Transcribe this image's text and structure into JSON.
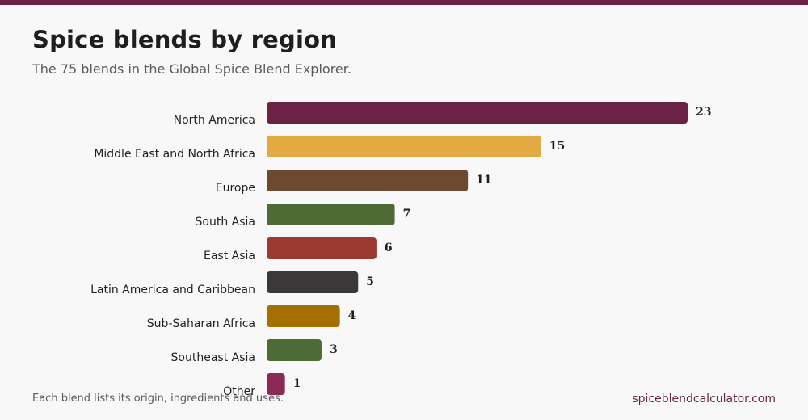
{
  "header": {
    "title": "Spice blends by region",
    "subtitle": "The 75 blends in the Global Spice Blend Explorer."
  },
  "footer": {
    "note": "Each blend lists its origin, ingredients and uses.",
    "site": "spiceblendcalculator.com"
  },
  "colors": {
    "accent": "#6a2343"
  },
  "chart_data": {
    "type": "bar",
    "orientation": "horizontal",
    "title": "Spice blends by region",
    "subtitle": "The 75 blends in the Global Spice Blend Explorer.",
    "categories": [
      "North America",
      "Middle East and North Africa",
      "Europe",
      "South Asia",
      "East Asia",
      "Latin America and Caribbean",
      "Sub-Saharan Africa",
      "Southeast Asia",
      "Other"
    ],
    "values": [
      23,
      15,
      11,
      7,
      6,
      5,
      4,
      3,
      1
    ],
    "bar_colors": [
      "#6a2343",
      "#e3a942",
      "#6d4a2f",
      "#4e6a35",
      "#9a3a30",
      "#3b383a",
      "#a46e00",
      "#4e6a35",
      "#8c2a57"
    ],
    "xlim": [
      0,
      23
    ],
    "data_labels": true,
    "grid": false,
    "legend": "none"
  }
}
